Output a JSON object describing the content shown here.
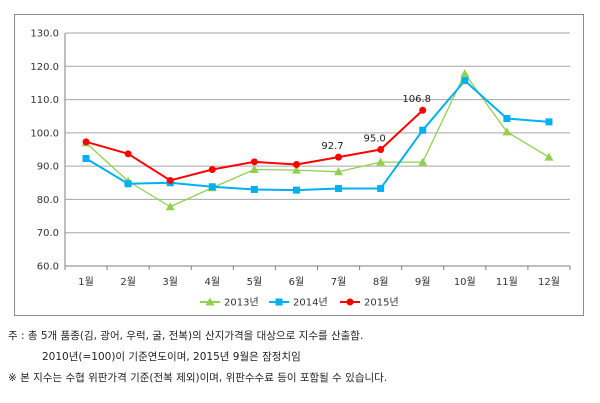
{
  "chart_data": {
    "type": "line",
    "categories": [
      "1월",
      "2월",
      "3월",
      "4월",
      "5월",
      "6월",
      "7월",
      "8월",
      "9월",
      "10월",
      "11월",
      "12월"
    ],
    "ylim": [
      60.0,
      130.0
    ],
    "yticks": [
      "60.0",
      "70.0",
      "80.0",
      "90.0",
      "100.0",
      "110.0",
      "120.0",
      "130.0"
    ],
    "grid": true,
    "legend_position": "bottom",
    "series": [
      {
        "name": "2013년",
        "color": "#92d050",
        "marker": "triangle",
        "values": [
          97.0,
          85.5,
          77.8,
          83.5,
          89.0,
          88.8,
          88.3,
          91.2,
          91.2,
          117.8,
          100.3,
          92.7
        ]
      },
      {
        "name": "2014년",
        "color": "#00b0f0",
        "marker": "square",
        "values": [
          92.3,
          84.7,
          85.0,
          83.8,
          83.0,
          82.8,
          83.3,
          83.3,
          100.8,
          115.7,
          104.3,
          103.3
        ]
      },
      {
        "name": "2015년",
        "color": "#ff0000",
        "marker": "circle",
        "values": [
          97.3,
          93.7,
          85.7,
          89.0,
          91.3,
          90.5,
          92.7,
          95.0,
          106.8,
          null,
          null,
          null
        ]
      }
    ],
    "annotations": [
      {
        "series": "2015년",
        "index": 6,
        "text": "92.7"
      },
      {
        "series": "2015년",
        "index": 7,
        "text": "95.0"
      },
      {
        "series": "2015년",
        "index": 8,
        "text": "106.8"
      }
    ]
  },
  "footnotes": {
    "line1": "주 : 총 5개 품종(김, 광어, 우럭, 굴, 전복)의 산지가격을 대상으로 지수를 산출함.",
    "line2": "2010년(=100)이 기준연도이며, 2015년 9월은 잠정치임",
    "line3": "※ 본 지수는 수협 위판가격 기준(전복 제외)이며, 위판수수료 등이 포함될 수 있습니다."
  }
}
